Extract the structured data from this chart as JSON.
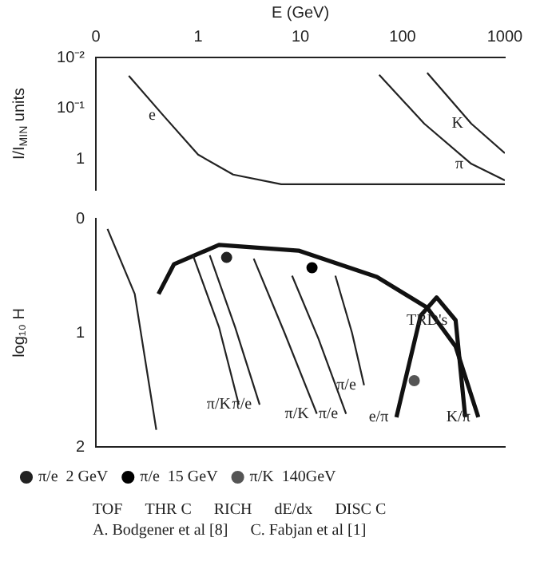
{
  "chart_data": [
    {
      "type": "line",
      "xlabel": "E (GeV)",
      "ylabel": "I/I$_{MIN}$ units",
      "log": "xy",
      "xlim": [
        0.1,
        1000
      ],
      "xticks": [
        {
          "value": 0.1,
          "label": "0"
        },
        1,
        10,
        100,
        1000
      ],
      "ylim": [
        4,
        0.01
      ],
      "yticks": [
        {
          "value": 0.01,
          "label": "10⁻²"
        },
        {
          "value": 0.1,
          "label": "10⁻¹"
        },
        1
      ],
      "grid": false,
      "legend": false,
      "marker": "none",
      "line_style": "solid",
      "series": [
        {
          "color": "#222222",
          "x": [
            0.21,
            0.46,
            1,
            2.2,
            6.5,
            1000
          ],
          "values": [
            0.023,
            0.14,
            0.81,
            2,
            3.1,
            3.1
          ]
        },
        {
          "color": "#222222",
          "x": [
            59,
            163,
            470,
            1000
          ],
          "values": [
            0.022,
            0.2,
            1.23,
            2.6
          ]
        },
        {
          "color": "#222222",
          "x": [
            174,
            470,
            1000
          ],
          "values": [
            0.02,
            0.2,
            0.76
          ]
        }
      ],
      "annotations": [
        {
          "text": "e",
          "x": 0.46,
          "y": 0.14
        },
        {
          "text": "π",
          "x": 470,
          "y": 1.23
        },
        {
          "text": "K",
          "x": 470,
          "y": 0.2
        }
      ]
    },
    {
      "type": "line",
      "ylabel": "log₁₀ H",
      "log": "x",
      "xlim": [
        0.1,
        1000
      ],
      "ylim": [
        2,
        0
      ],
      "yticks": [
        0,
        1,
        2
      ],
      "tick_labels": "y",
      "grid": false,
      "legend": "bottom",
      "line_style": "solid",
      "series": [
        {
          "color": "#222222",
          "x": [
            0.13,
            0.24,
            0.39
          ],
          "values": [
            0.09,
            0.66,
            1.85
          ]
        },
        {
          "color": "#222222",
          "x": [
            0.89,
            1.6,
            2.5
          ],
          "values": [
            0.32,
            0.95,
            1.63
          ]
        },
        {
          "color": "#222222",
          "x": [
            1.3,
            2.3,
            4
          ],
          "values": [
            0.32,
            0.95,
            1.63
          ]
        },
        {
          "color": "#222222",
          "x": [
            3.5,
            7,
            14.5
          ],
          "values": [
            0.35,
            1,
            1.71
          ]
        },
        {
          "color": "#222222",
          "x": [
            8.3,
            15,
            28
          ],
          "values": [
            0.5,
            1.05,
            1.71
          ]
        },
        {
          "color": "#222222",
          "x": [
            22,
            32,
            42
          ],
          "values": [
            0.5,
            1,
            1.46
          ]
        },
        {
          "color": "#111111",
          "x": [
            0.41,
            0.58,
            1.6,
            9.6,
            56,
            174,
            330,
            550
          ],
          "values": [
            0.66,
            0.4,
            0.23,
            0.28,
            0.51,
            0.78,
            1.12,
            1.74
          ]
        },
        {
          "color": "#111111",
          "x": [
            87,
            150,
            215,
            330,
            410
          ],
          "values": [
            1.74,
            0.85,
            0.69,
            0.89,
            1.74
          ]
        },
        {
          "type": "scatter",
          "name": "π/e  2 GeV",
          "color": "#222222",
          "x": [
            1.9
          ],
          "values": [
            0.34
          ]
        },
        {
          "type": "scatter",
          "name": "π/e  15 GeV",
          "color": "#000000",
          "x": [
            13
          ],
          "values": [
            0.43
          ]
        },
        {
          "type": "scatter",
          "name": "π/K  140GeV",
          "color": "#555555",
          "x": [
            130
          ],
          "values": [
            1.42
          ]
        }
      ],
      "annotations": [
        {
          "text": "π/K",
          "x": 2.5,
          "y": 1.63
        },
        {
          "text": "π/e",
          "x": 4,
          "y": 1.63
        },
        {
          "text": "π/K",
          "x": 14.5,
          "y": 1.71
        },
        {
          "text": "π/e",
          "x": 28,
          "y": 1.71
        },
        {
          "text": "π/e",
          "x": 42,
          "y": 1.46
        },
        {
          "text": "TRD's",
          "x": 330,
          "y": 0.89
        },
        {
          "text": "e/π",
          "x": 87,
          "y": 1.74
        },
        {
          "text": "K/π",
          "x": 550,
          "y": 1.74
        },
        "TOF",
        "THR C",
        "RICH",
        "dE/dx",
        "DISC C",
        "A. Bodgener et al [8]",
        "C. Fabjan et al [1]"
      ]
    }
  ]
}
